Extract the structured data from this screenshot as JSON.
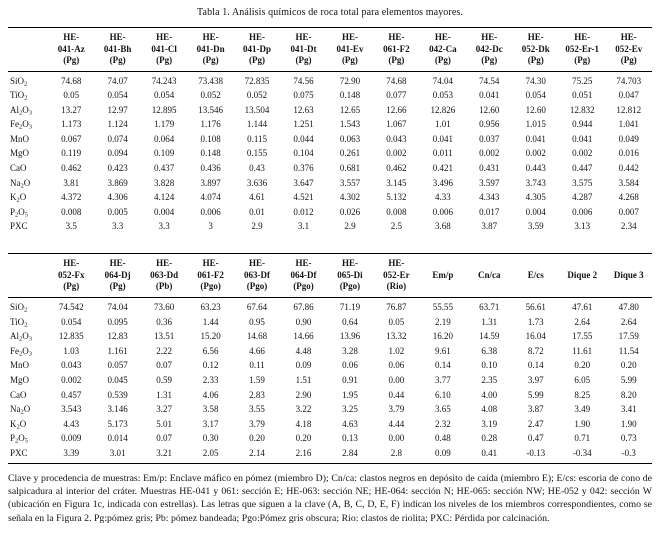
{
  "title": "Tabla 1. Análisis químicos de roca total para elementos mayores.",
  "table1": {
    "headers": [
      [
        "HE-",
        "041-Az",
        "(Pg)"
      ],
      [
        "HE-",
        "041-Bh",
        "(Pg)"
      ],
      [
        "HE-",
        "041-Cl",
        "(Pg)"
      ],
      [
        "HE-",
        "041-Dn",
        "(Pg)"
      ],
      [
        "HE-",
        "041-Dp",
        "(Pg)"
      ],
      [
        "HE-",
        "041-Dt",
        "(Pg)"
      ],
      [
        "HE-",
        "041-Ev",
        "(Pg)"
      ],
      [
        "HE-",
        "061-F2",
        "(Pg)"
      ],
      [
        "HE-",
        "042-Ca",
        "(Pg)"
      ],
      [
        "HE-",
        "042-Dc",
        "(Pg)"
      ],
      [
        "HE-",
        "052-Dk",
        "(Pg)"
      ],
      [
        "HE-",
        "052-Er-1",
        "(Pg)"
      ],
      [
        "HE-",
        "052-Ev",
        "(Pg)"
      ]
    ],
    "rows": [
      {
        "label": "SiO~2~",
        "values": [
          "74.68",
          "74.07",
          "74.243",
          "73.438",
          "72.835",
          "74.56",
          "72.90",
          "74.68",
          "74.04",
          "74.54",
          "74.30",
          "75.25",
          "74.703"
        ]
      },
      {
        "label": "TiO~2~",
        "values": [
          "0.05",
          "0.054",
          "0.054",
          "0.052",
          "0.052",
          "0.075",
          "0.148",
          "0.077",
          "0.053",
          "0.041",
          "0.054",
          "0.051",
          "0.047"
        ]
      },
      {
        "label": "Al~2~O~3~",
        "values": [
          "13.27",
          "12.97",
          "12.895",
          "13.546",
          "13.504",
          "12.63",
          "12.65",
          "12.66",
          "12.826",
          "12.60",
          "12.60",
          "12.832",
          "12.812"
        ]
      },
      {
        "label": "Fe~2~O~3~",
        "values": [
          "1.173",
          "1.124",
          "1.179",
          "1.176",
          "1.144",
          "1.251",
          "1.543",
          "1.067",
          "1.01",
          "0.956",
          "1.015",
          "0.944",
          "1.041"
        ]
      },
      {
        "label": "MnO",
        "values": [
          "0.067",
          "0.074",
          "0.064",
          "0.108",
          "0.115",
          "0.044",
          "0.063",
          "0.043",
          "0.041",
          "0.037",
          "0.041",
          "0.041",
          "0.049"
        ]
      },
      {
        "label": "MgO",
        "values": [
          "0.119",
          "0.094",
          "0.109",
          "0.148",
          "0.155",
          "0.104",
          "0.261",
          "0.002",
          "0.011",
          "0.002",
          "0.002",
          "0.002",
          "0.016"
        ]
      },
      {
        "label": "CaO",
        "values": [
          "0.462",
          "0.423",
          "0.437",
          "0.436",
          "0.43",
          "0.376",
          "0.681",
          "0.462",
          "0.421",
          "0.431",
          "0.443",
          "0.447",
          "0.442"
        ]
      },
      {
        "label": "Na~2~O",
        "values": [
          "3.81",
          "3.869",
          "3.828",
          "3.897",
          "3.636",
          "3.647",
          "3.557",
          "3.145",
          "3.496",
          "3.597",
          "3.743",
          "3.575",
          "3.584"
        ]
      },
      {
        "label": "K~2~O",
        "values": [
          "4.372",
          "4.306",
          "4.124",
          "4.074",
          "4.61",
          "4.521",
          "4.302",
          "5.132",
          "4.33",
          "4.343",
          "4.305",
          "4.287",
          "4.268"
        ]
      },
      {
        "label": "P~2~O~5~",
        "values": [
          "0.008",
          "0.005",
          "0.004",
          "0.006",
          "0.01",
          "0.012",
          "0.026",
          "0.008",
          "0.006",
          "0.017",
          "0.004",
          "0.006",
          "0.007"
        ]
      },
      {
        "label": "PXC",
        "values": [
          "3.5",
          "3.3",
          "3.3",
          "3",
          "2.9",
          "3.1",
          "2.9",
          "2.5",
          "3.68",
          "3.87",
          "3.59",
          "3.13",
          "2.34"
        ]
      }
    ]
  },
  "table2": {
    "headers": [
      [
        "HE-",
        "052-Fx",
        "(Pg)"
      ],
      [
        "HE-",
        "064-Dj",
        "(Pg)"
      ],
      [
        "HE-",
        "063-Dd",
        "(Pb)"
      ],
      [
        "HE-",
        "061-F2",
        "(Pgo)"
      ],
      [
        "HE-",
        "063-Df",
        "(Pgo)"
      ],
      [
        "HE-",
        "064-Df",
        "(Pgo)"
      ],
      [
        "HE-",
        "065-Di",
        "(Pgo)"
      ],
      [
        "HE-",
        "052-Er",
        "(Rio)"
      ],
      [
        "Em/p"
      ],
      [
        "Cn/ca"
      ],
      [
        "E/cs"
      ],
      [
        "Dique 2"
      ],
      [
        "Dique 3"
      ]
    ],
    "rows": [
      {
        "label": "SiO~2~",
        "values": [
          "74.542",
          "74.04",
          "73.60",
          "63.23",
          "67.64",
          "67.86",
          "71.19",
          "76.87",
          "55.55",
          "63.71",
          "56.61",
          "47.61",
          "47.80"
        ]
      },
      {
        "label": "TiO~2~",
        "values": [
          "0.054",
          "0.095",
          "0.36",
          "1.44",
          "0.95",
          "0.90",
          "0.64",
          "0.05",
          "2.19",
          "1.31",
          "1.73",
          "2.64",
          "2.64"
        ]
      },
      {
        "label": "Al~2~O~3~",
        "values": [
          "12.835",
          "12.83",
          "13.51",
          "15.20",
          "14.68",
          "14.66",
          "13.96",
          "13.32",
          "16.20",
          "14.59",
          "16.04",
          "17.55",
          "17.59"
        ]
      },
      {
        "label": "Fe~2~O~3~",
        "values": [
          "1.03",
          "1.161",
          "2.22",
          "6.56",
          "4.66",
          "4.48",
          "3.28",
          "1.02",
          "9.61",
          "6.38",
          "8.72",
          "11.61",
          "11.54"
        ]
      },
      {
        "label": "MnO",
        "values": [
          "0.043",
          "0.057",
          "0.07",
          "0.12",
          "0.11",
          "0.09",
          "0.06",
          "0.06",
          "0.14",
          "0.10",
          "0.14",
          "0.20",
          "0.20"
        ]
      },
      {
        "label": "MgO",
        "values": [
          "0.002",
          "0.045",
          "0.59",
          "2.33",
          "1.59",
          "1.51",
          "0.91",
          "0.00",
          "3.77",
          "2.35",
          "3.97",
          "6.05",
          "5.99"
        ]
      },
      {
        "label": "CaO",
        "values": [
          "0.457",
          "0.539",
          "1.31",
          "4.06",
          "2.83",
          "2.90",
          "1.95",
          "0.44",
          "6.10",
          "4.00",
          "5.99",
          "8.25",
          "8.20"
        ]
      },
      {
        "label": "Na~2~O",
        "values": [
          "3.543",
          "3.146",
          "3.27",
          "3.58",
          "3.55",
          "3.22",
          "3.25",
          "3.79",
          "3.65",
          "4.08",
          "3.87",
          "3.49",
          "3.41"
        ]
      },
      {
        "label": "K~2~O",
        "values": [
          "4.43",
          "5.173",
          "5.01",
          "3.17",
          "3.79",
          "4.18",
          "4.63",
          "4.44",
          "2.32",
          "3.19",
          "2.47",
          "1.90",
          "1.90"
        ]
      },
      {
        "label": "P~2~O~5~",
        "values": [
          "0.009",
          "0.014",
          "0.07",
          "0.30",
          "0.20",
          "0.20",
          "0.13",
          "0.00",
          "0.48",
          "0.28",
          "0.47",
          "0.71",
          "0.73"
        ]
      },
      {
        "label": "PXC",
        "values": [
          "3.39",
          "3.01",
          "3.21",
          "2.05",
          "2.14",
          "2.16",
          "2.84",
          "2.8",
          "0.09",
          "0.41",
          "-0.13",
          "-0.34",
          "-0.3"
        ]
      }
    ]
  },
  "footnote": "Clave y procedencia de muestras: Em/p: Enclave máfico en pómez (miembro D); Cn/ca: clastos negros en depósito de caída (miembro E); E/cs: escoria de cono de salpicadura al interior del cráter. Muestras HE-041 y 061: sección E; HE-063: sección NE; HE-064: sección N; HE-065: sección NW; HE-052 y 042: sección W (ubicación en Figura 1c, indicada con estrellas). Las letras que siguen a la clave (A, B, C, D, E, F) indican los niveles de los miembros correspondientes, como se señala en la Figura 2. Pg:pómez gris; Pb: pómez bandeada; Pgo:Pómez gris obscura; Rio: clastos de riolita; PXC: Pérdida por calcinación.",
  "colors": {
    "text": "#141414",
    "rule": "#000000",
    "background": "#ffffff"
  }
}
